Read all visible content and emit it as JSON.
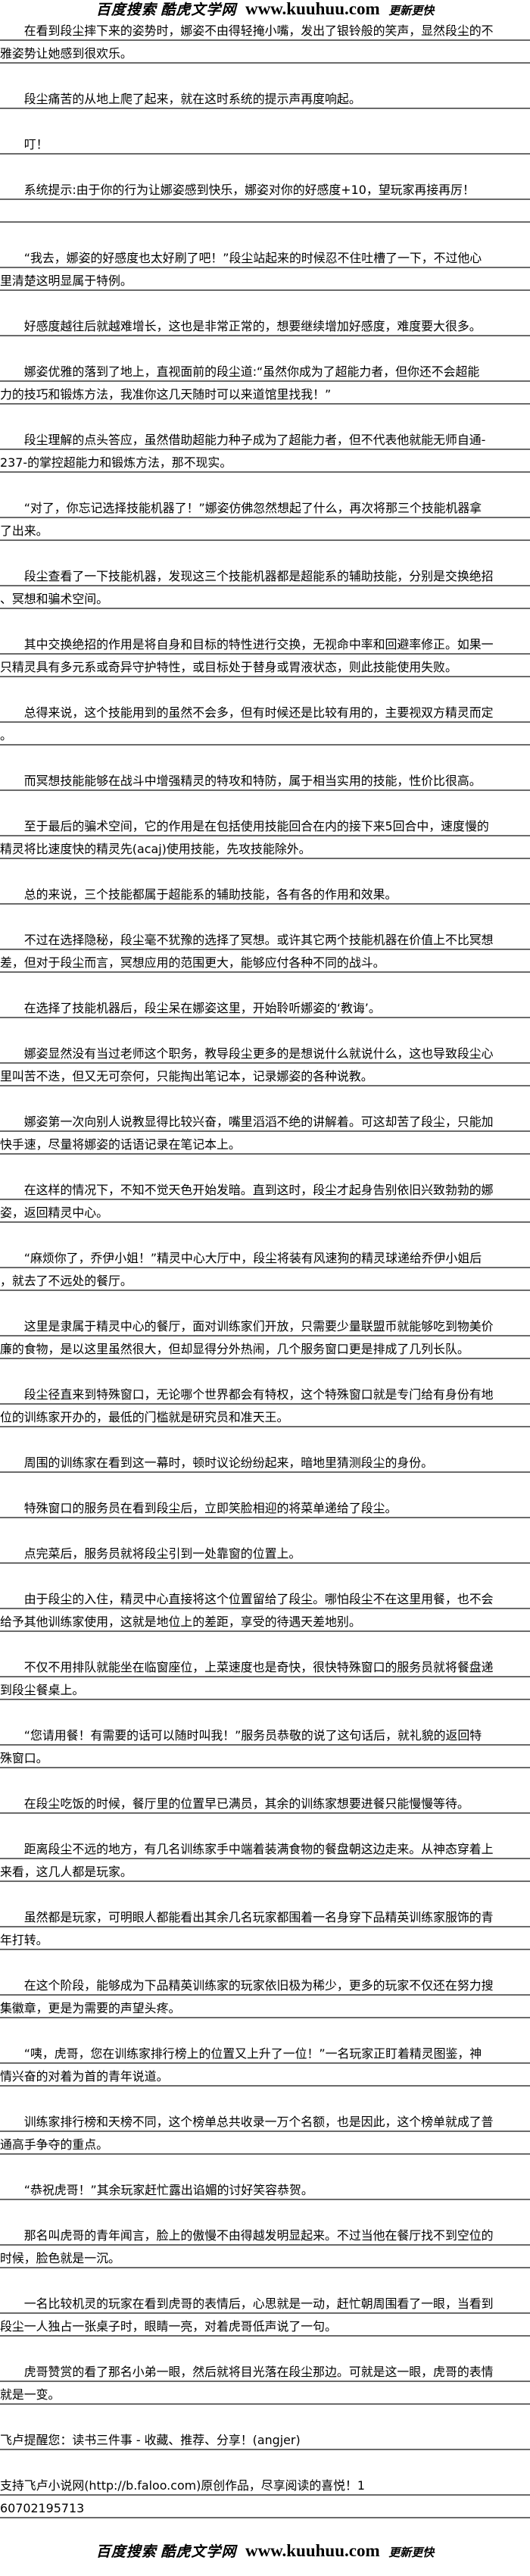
{
  "header": {
    "site_cn_1": "百度搜索",
    "site_cn_2": "酷虎文学网",
    "site_url": "www.kuuhuu.com",
    "slogan": "更新更快"
  },
  "paragraphs": [
    {
      "lines": [
        "　　在看到段尘摔下来的姿势时，娜姿不由得轻掩小嘴，发出了银铃般的笑声，显然段尘的不",
        "雅姿势让她感到很欢乐。"
      ]
    },
    {
      "lines": [
        "　　段尘痛苦的从地上爬了起来，就在这时系统的提示声再度响起。"
      ]
    },
    {
      "lines": [
        "　　叮！"
      ]
    },
    {
      "lines": [
        "　　系统提示:由于你的行为让娜姿感到快乐，娜姿对你的好感度+10，望玩家再接再厉！",
        ""
      ]
    },
    {
      "lines": [
        "　　“我去，娜姿的好感度也太好刷了吧！”段尘站起来的时候忍不住吐槽了一下，不过他心",
        "里清楚这明显属于特例。"
      ]
    },
    {
      "lines": [
        "　　好感度越往后就越难增长，这也是非常正常的，想要继续增加好感度，难度要大很多。"
      ]
    },
    {
      "lines": [
        "　　娜姿优雅的落到了地上，直视面前的段尘道:“虽然你成为了超能力者，但你还不会超能",
        "力的技巧和锻炼方法，我准你这几天随时可以来道馆里找我！”"
      ]
    },
    {
      "lines": [
        "　　段尘理解的点头答应，虽然借助超能力种子成为了超能力者，但不代表他就能无师自通-",
        "237-的掌控超能力和锻炼方法，那不现实。"
      ]
    },
    {
      "lines": [
        "　　“对了，你忘记选择技能机器了！”娜姿仿佛忽然想起了什么，再次将那三个技能机器拿",
        "了出来。"
      ]
    },
    {
      "lines": [
        "　　段尘查看了一下技能机器，发现这三个技能机器都是超能系的辅助技能，分别是交换绝招",
        "、冥想和骗术空间。"
      ]
    },
    {
      "lines": [
        "　　其中交换绝招的作用是将自身和目标的特性进行交换，无视命中率和回避率修正。如果一",
        "只精灵具有多元系或奇异守护特性，或目标处于替身或胃液状态，则此技能使用失败。"
      ]
    },
    {
      "lines": [
        "　　总得来说，这个技能用到的虽然不会多，但有时候还是比较有用的，主要视双方精灵而定",
        "。"
      ]
    },
    {
      "lines": [
        "　　而冥想技能能够在战斗中增强精灵的特攻和特防，属于相当实用的技能，性价比很高。"
      ]
    },
    {
      "lines": [
        "　　至于最后的骗术空间，它的作用是在包括使用技能回合在内的接下来5回合中，速度慢的",
        "精灵将比速度快的精灵先(acaj)使用技能，先攻技能除外。"
      ]
    },
    {
      "lines": [
        "　　总的来说，三个技能都属于超能系的辅助技能，各有各的作用和效果。"
      ]
    },
    {
      "lines": [
        "　　不过在选择隐秘，段尘毫不犹豫的选择了冥想。或许其它两个技能机器在价值上不比冥想",
        "差，但对于段尘而言，冥想应用的范围更大，能够应付各种不同的战斗。"
      ]
    },
    {
      "lines": [
        "　　在选择了技能机器后，段尘呆在娜姿这里，开始聆听娜姿的‘教诲’。"
      ]
    },
    {
      "lines": [
        "　　娜姿显然没有当过老师这个职务，教导段尘更多的是想说什么就说什么，这也导致段尘心",
        "里叫苦不迭，但又无可奈何，只能掏出笔记本，记录娜姿的各种说教。"
      ]
    },
    {
      "lines": [
        "　　娜姿第一次向别人说教显得比较兴奋，嘴里滔滔不绝的讲解着。可这却苦了段尘，只能加",
        "快手速，尽量将娜姿的话语记录在笔记本上。"
      ]
    },
    {
      "lines": [
        "　　在这样的情况下，不知不觉天色开始发暗。直到这时，段尘才起身告别依旧兴致勃勃的娜",
        "姿，返回精灵中心。"
      ]
    },
    {
      "lines": [
        "　　“麻烦你了，乔伊小姐！”精灵中心大厅中，段尘将装有风速狗的精灵球递给乔伊小姐后",
        "，就去了不远处的餐厅。"
      ]
    },
    {
      "lines": [
        "　　这里是隶属于精灵中心的餐厅，面对训练家们开放，只需要少量联盟币就能够吃到物美价",
        "廉的食物，是以这里虽然很大，但却显得分外热闹，几个服务窗口更是排成了几列长队。"
      ]
    },
    {
      "lines": [
        "　　段尘径直来到特殊窗口，无论哪个世界都会有特权，这个特殊窗口就是专门给有身份有地",
        "位的训练家开办的，最低的门槛就是研究员和准天王。"
      ]
    },
    {
      "lines": [
        "　　周围的训练家在看到这一幕时，顿时议论纷纷起来，暗地里猜测段尘的身份。"
      ]
    },
    {
      "lines": [
        "　　特殊窗口的服务员在看到段尘后，立即笑脸相迎的将菜单递给了段尘。"
      ]
    },
    {
      "lines": [
        "　　点完菜后，服务员就将段尘引到一处靠窗的位置上。"
      ]
    },
    {
      "lines": [
        "　　由于段尘的入住，精灵中心直接将这个位置留给了段尘。哪怕段尘不在这里用餐，也不会",
        "给予其他训练家使用，这就是地位上的差距，享受的待遇天差地别。"
      ]
    },
    {
      "lines": [
        "　　不仅不用排队就能坐在临窗座位，上菜速度也是奇快，很快特殊窗口的服务员就将餐盘递",
        "到段尘餐桌上。"
      ]
    },
    {
      "lines": [
        "　　“您请用餐！有需要的话可以随时叫我！”服务员恭敬的说了这句话后，就礼貌的返回特",
        "殊窗口。"
      ]
    },
    {
      "lines": [
        "　　在段尘吃饭的时候，餐厅里的位置早已满员，其余的训练家想要进餐只能慢慢等待。"
      ]
    },
    {
      "lines": [
        "　　距离段尘不远的地方，有几名训练家手中端着装满食物的餐盘朝这边走来。从神态穿着上",
        "来看，这几人都是玩家。"
      ]
    },
    {
      "lines": [
        "　　虽然都是玩家，可明眼人都能看出其余几名玩家都围着一名身穿下品精英训练家服饰的青",
        "年打转。"
      ]
    },
    {
      "lines": [
        "　　在这个阶段，能够成为下品精英训练家的玩家依旧极为稀少，更多的玩家不仅还在努力搜",
        "集徽章，更是为需要的声望头疼。"
      ]
    },
    {
      "lines": [
        "　　“咦，虎哥，您在训练家排行榜上的位置又上升了一位！”一名玩家正盯着精灵图鉴，神",
        "情兴奋的对着为首的青年说道。"
      ]
    },
    {
      "lines": [
        "　　训练家排行榜和天榜不同，这个榜单总共收录一万个名额，也是因此，这个榜单就成了普",
        "通高手争夺的重点。"
      ]
    },
    {
      "lines": [
        "　　“恭祝虎哥！”其余玩家赶忙露出谄媚的讨好笑容恭贺。"
      ]
    },
    {
      "lines": [
        "　　那名叫虎哥的青年闻言，脸上的傲慢不由得越发明显起来。不过当他在餐厅找不到空位的",
        "时候，脸色就是一沉。"
      ]
    },
    {
      "lines": [
        "　　一名比较机灵的玩家在看到虎哥的表情后，心思就是一动，赶忙朝周围看了一眼，当看到",
        "段尘一人独占一张桌子时，眼睛一亮，对着虎哥低声说了一句。"
      ]
    },
    {
      "lines": [
        "　　虎哥赞赏的看了那名小弟一眼，然后就将目光落在段尘那边。可就是这一眼，虎哥的表情",
        "就是一变。"
      ]
    },
    {
      "lines": [
        "飞卢提醒您：读书三件事 - 收藏、推荐、分享！(angjer)"
      ]
    },
    {
      "lines": [
        "支持飞卢小说网(http://b.faloo.com)原创作品，尽享阅读的喜悦！1",
        "60702195713"
      ]
    }
  ],
  "footer": {
    "site_cn_1": "百度搜索",
    "site_cn_2": "酷虎文学网",
    "site_url": "www.kuuhuu.com",
    "slogan": "更新更快"
  }
}
